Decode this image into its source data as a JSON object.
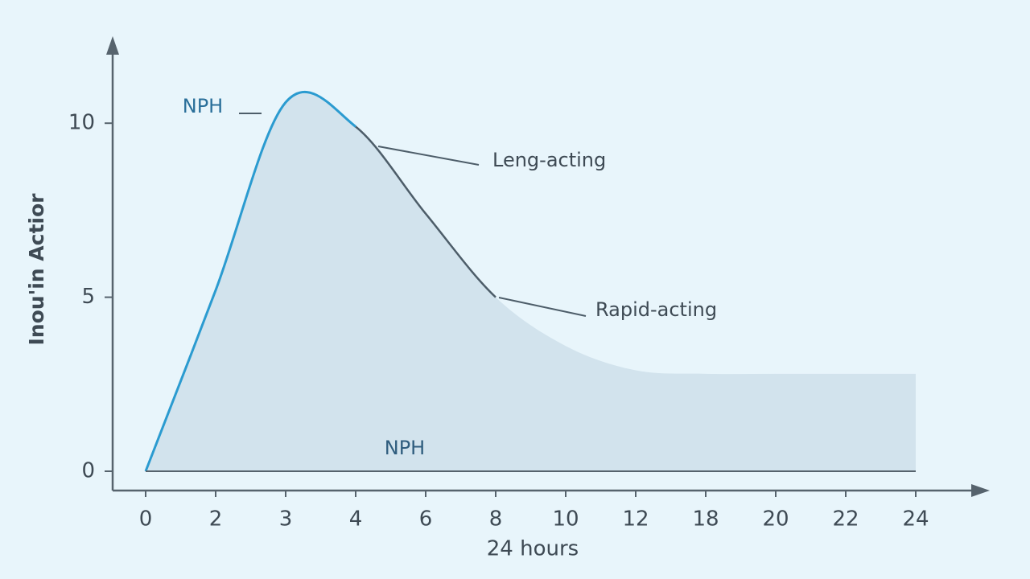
{
  "chart_data": {
    "type": "area",
    "x_label": "24 hours",
    "y_label": "Inou'in Actior",
    "categories": [
      "0",
      "2",
      "3",
      "4",
      "6",
      "8",
      "10",
      "12",
      "18",
      "20",
      "22",
      "24"
    ],
    "values": [
      0,
      5.2,
      10.6,
      9.9,
      7.4,
      5.0,
      3.6,
      2.9,
      2.8,
      2.8,
      2.8,
      2.8
    ],
    "ylim": [
      0,
      12.5
    ],
    "yticks": [
      0,
      5,
      10
    ],
    "colors": {
      "fill": "#d2e3ed",
      "rise": "#2b9bd0",
      "fall": "#4d5d69",
      "axis": "#56636d"
    },
    "annotations": [
      "NPH",
      "Leng-acting",
      "Rapid-acting",
      "NPH"
    ]
  }
}
